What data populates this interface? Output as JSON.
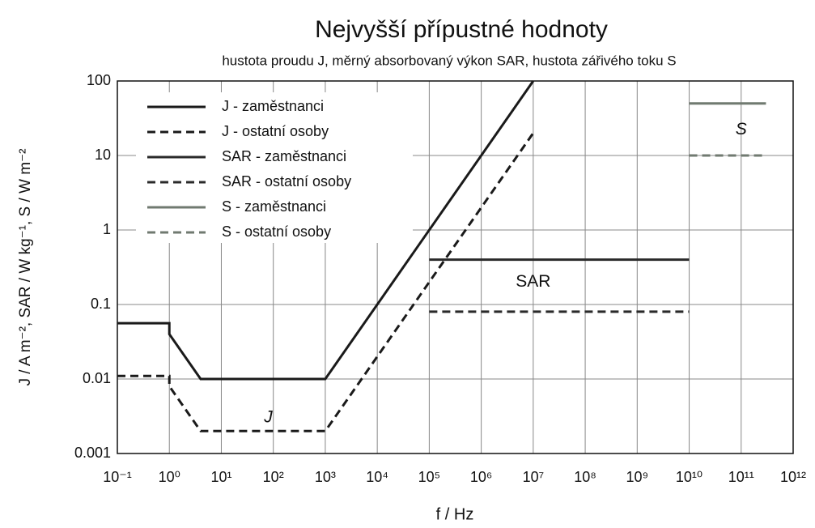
{
  "chart_data": {
    "type": "line",
    "title": "Nejvyšší přípustné hodnoty",
    "subtitle": "hustota proudu J, měrný absorbovaný výkon  SAR, hustota zářivého toku S",
    "x_label": "f / Hz",
    "y_label": "J / A m⁻², SAR / W kg⁻¹, S / W m⁻²",
    "x_log": true,
    "y_log": true,
    "grid": true,
    "legend": "upper left",
    "xlim": [
      0.1,
      1000000000000
    ],
    "ylim": [
      0.001,
      100
    ],
    "xticks": [
      {
        "value": 0.1,
        "label": "10⁻¹"
      },
      {
        "value": 1,
        "label": "10⁰"
      },
      {
        "value": 10,
        "label": "10¹"
      },
      {
        "value": 100,
        "label": "10²"
      },
      {
        "value": 1000,
        "label": "10³"
      },
      {
        "value": 10000,
        "label": "10⁴"
      },
      {
        "value": 100000,
        "label": "10⁵"
      },
      {
        "value": 1000000,
        "label": "10⁶"
      },
      {
        "value": 10000000,
        "label": "10⁷"
      },
      {
        "value": 100000000,
        "label": "10⁸"
      },
      {
        "value": 1000000000,
        "label": "10⁹"
      },
      {
        "value": 10000000000,
        "label": "10¹⁰"
      },
      {
        "value": 100000000000,
        "label": "10¹¹"
      },
      {
        "value": 1000000000000,
        "label": "10¹²"
      }
    ],
    "yticks": [
      0.001,
      0.01,
      0.1,
      1,
      10,
      100
    ],
    "series": [
      {
        "name": "J - zaměstnanci",
        "color": "#1a1a1a",
        "style": "solid",
        "x": [
          0.1,
          1,
          1,
          4,
          1000,
          10000000
        ],
        "values": [
          0.056,
          0.056,
          0.04,
          0.01,
          0.01,
          100
        ]
      },
      {
        "name": "J - ostatní osoby",
        "color": "#1a1a1a",
        "style": "dashed",
        "x": [
          0.1,
          1,
          1,
          4,
          1000,
          10000000
        ],
        "values": [
          0.011,
          0.011,
          0.008,
          0.002,
          0.002,
          20
        ]
      },
      {
        "name": "SAR - zaměstnanci",
        "color": "#2a2a2a",
        "style": "solid",
        "x": [
          100000,
          10000000000
        ],
        "values": [
          0.4,
          0.4
        ]
      },
      {
        "name": "SAR - ostatní osoby",
        "color": "#2a2a2a",
        "style": "dashed",
        "x": [
          100000,
          10000000000
        ],
        "values": [
          0.08,
          0.08
        ]
      },
      {
        "name": "S - zaměstnanci",
        "color": "#707a70",
        "style": "solid",
        "x": [
          10000000000,
          300000000000
        ],
        "values": [
          50,
          50
        ]
      },
      {
        "name": "S - ostatní osoby",
        "color": "#707a70",
        "style": "dashed",
        "x": [
          10000000000,
          300000000000
        ],
        "values": [
          10,
          10
        ]
      }
    ],
    "annotations": [
      {
        "text": "J",
        "x": 80,
        "y": 0.003
      },
      {
        "text": "SAR",
        "x": 10000000,
        "y": 0.2
      },
      {
        "text": "S",
        "x": 100000000000,
        "y": 22
      }
    ]
  }
}
